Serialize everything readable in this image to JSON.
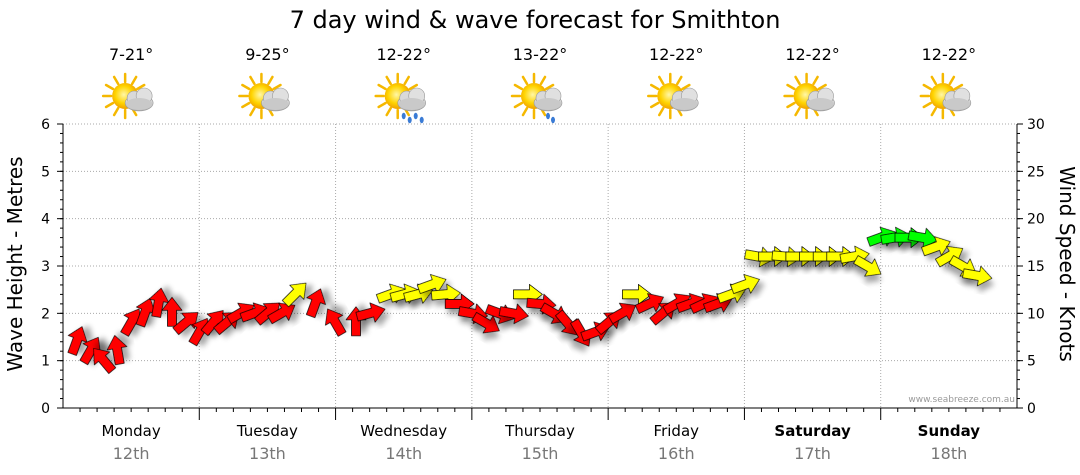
{
  "chart_data": {
    "type": "line",
    "title": "7 day wind & wave forecast for Smithton",
    "ylabel": "Wave Height - Metres",
    "y2label": "Wind Speed - Knots",
    "ylim": [
      0,
      6
    ],
    "y2lim": [
      0,
      30
    ],
    "yticks": [
      "0",
      "1",
      "2",
      "3",
      "4",
      "5",
      "6"
    ],
    "y2ticks": [
      "0",
      "5",
      "10",
      "15",
      "20",
      "25",
      "30"
    ],
    "grid": true,
    "credit": "www.seabreeze.com.au",
    "days": [
      {
        "name": "Monday",
        "date": "12th",
        "temp": "7-21°",
        "weather": "partly-cloudy",
        "bold": false
      },
      {
        "name": "Tuesday",
        "date": "13th",
        "temp": "9-25°",
        "weather": "partly-cloudy",
        "bold": false
      },
      {
        "name": "Wednesday",
        "date": "14th",
        "temp": "12-22°",
        "weather": "showers",
        "bold": false
      },
      {
        "name": "Thursday",
        "date": "15th",
        "temp": "13-22°",
        "weather": "light-shower",
        "bold": false
      },
      {
        "name": "Friday",
        "date": "16th",
        "temp": "12-22°",
        "weather": "partly-cloudy",
        "bold": false
      },
      {
        "name": "Saturday",
        "date": "17th",
        "temp": "12-22°",
        "weather": "partly-cloudy",
        "bold": true
      },
      {
        "name": "Sunday",
        "date": "18th",
        "temp": "12-22°",
        "weather": "partly-cloudy",
        "bold": true
      }
    ],
    "wind_arrows": [
      {
        "t": 0.1,
        "knots": 7,
        "dir": 200,
        "color": "#ff0000"
      },
      {
        "t": 0.2,
        "knots": 6,
        "dir": 210,
        "color": "#ff0000"
      },
      {
        "t": 0.3,
        "knots": 5,
        "dir": 140,
        "color": "#ff0000"
      },
      {
        "t": 0.4,
        "knots": 6,
        "dir": 170,
        "color": "#ff0000"
      },
      {
        "t": 0.5,
        "knots": 9,
        "dir": 210,
        "color": "#ff0000"
      },
      {
        "t": 0.6,
        "knots": 10,
        "dir": 200,
        "color": "#ff0000"
      },
      {
        "t": 0.7,
        "knots": 11,
        "dir": 190,
        "color": "#ff0000"
      },
      {
        "t": 0.8,
        "knots": 10,
        "dir": 180,
        "color": "#ff0000"
      },
      {
        "t": 0.9,
        "knots": 9,
        "dir": 230,
        "color": "#ff0000"
      },
      {
        "t": 1.0,
        "knots": 8,
        "dir": 210,
        "color": "#ff0000"
      },
      {
        "t": 1.1,
        "knots": 9,
        "dir": 220,
        "color": "#ff0000"
      },
      {
        "t": 1.2,
        "knots": 9,
        "dir": 230,
        "color": "#ff0000"
      },
      {
        "t": 1.3,
        "knots": 10,
        "dir": 240,
        "color": "#ff0000"
      },
      {
        "t": 1.4,
        "knots": 10,
        "dir": 250,
        "color": "#ff0000"
      },
      {
        "t": 1.5,
        "knots": 10,
        "dir": 230,
        "color": "#ff0000"
      },
      {
        "t": 1.6,
        "knots": 10,
        "dir": 240,
        "color": "#ff0000"
      },
      {
        "t": 1.7,
        "knots": 12,
        "dir": 225,
        "color": "#ffff00"
      },
      {
        "t": 1.85,
        "knots": 11,
        "dir": 200,
        "color": "#ff0000"
      },
      {
        "t": 2.0,
        "knots": 9,
        "dir": 150,
        "color": "#ff0000"
      },
      {
        "t": 2.15,
        "knots": 9,
        "dir": 180,
        "color": "#ff0000"
      },
      {
        "t": 2.25,
        "knots": 10,
        "dir": 255,
        "color": "#ff0000"
      },
      {
        "t": 2.4,
        "knots": 12,
        "dir": 250,
        "color": "#ffff00"
      },
      {
        "t": 2.5,
        "knots": 12,
        "dir": 255,
        "color": "#ffff00"
      },
      {
        "t": 2.6,
        "knots": 12,
        "dir": 255,
        "color": "#ffff00"
      },
      {
        "t": 2.7,
        "knots": 13,
        "dir": 250,
        "color": "#ffff00"
      },
      {
        "t": 2.8,
        "knots": 12,
        "dir": 265,
        "color": "#ffff00"
      },
      {
        "t": 2.9,
        "knots": 11,
        "dir": 270,
        "color": "#ff0000"
      },
      {
        "t": 3.0,
        "knots": 10,
        "dir": 280,
        "color": "#ff0000"
      },
      {
        "t": 3.1,
        "knots": 9,
        "dir": 300,
        "color": "#ff0000"
      },
      {
        "t": 3.2,
        "knots": 10,
        "dir": 290,
        "color": "#ff0000"
      },
      {
        "t": 3.3,
        "knots": 10,
        "dir": 280,
        "color": "#ff0000"
      },
      {
        "t": 3.4,
        "knots": 12,
        "dir": 270,
        "color": "#ffff00"
      },
      {
        "t": 3.5,
        "knots": 11,
        "dir": 275,
        "color": "#ff0000"
      },
      {
        "t": 3.6,
        "knots": 10,
        "dir": 300,
        "color": "#ff0000"
      },
      {
        "t": 3.7,
        "knots": 9,
        "dir": 320,
        "color": "#ff0000"
      },
      {
        "t": 3.8,
        "knots": 8,
        "dir": 330,
        "color": "#ff0000"
      },
      {
        "t": 3.9,
        "knots": 8,
        "dir": 250,
        "color": "#ff0000"
      },
      {
        "t": 4.0,
        "knots": 9,
        "dir": 230,
        "color": "#ff0000"
      },
      {
        "t": 4.1,
        "knots": 10,
        "dir": 240,
        "color": "#ff0000"
      },
      {
        "t": 4.2,
        "knots": 12,
        "dir": 270,
        "color": "#ffff00"
      },
      {
        "t": 4.3,
        "knots": 11,
        "dir": 245,
        "color": "#ff0000"
      },
      {
        "t": 4.4,
        "knots": 10,
        "dir": 230,
        "color": "#ff0000"
      },
      {
        "t": 4.5,
        "knots": 11,
        "dir": 240,
        "color": "#ff0000"
      },
      {
        "t": 4.6,
        "knots": 11,
        "dir": 250,
        "color": "#ff0000"
      },
      {
        "t": 4.7,
        "knots": 11,
        "dir": 245,
        "color": "#ff0000"
      },
      {
        "t": 4.8,
        "knots": 11,
        "dir": 250,
        "color": "#ff0000"
      },
      {
        "t": 4.9,
        "knots": 12,
        "dir": 250,
        "color": "#ffff00"
      },
      {
        "t": 5.0,
        "knots": 13,
        "dir": 250,
        "color": "#ffff00"
      },
      {
        "t": 5.1,
        "knots": 16,
        "dir": 280,
        "color": "#ffff00"
      },
      {
        "t": 5.2,
        "knots": 16,
        "dir": 270,
        "color": "#ffff00"
      },
      {
        "t": 5.3,
        "knots": 16,
        "dir": 275,
        "color": "#ffff00"
      },
      {
        "t": 5.4,
        "knots": 16,
        "dir": 270,
        "color": "#ffff00"
      },
      {
        "t": 5.5,
        "knots": 16,
        "dir": 270,
        "color": "#ffff00"
      },
      {
        "t": 5.6,
        "knots": 16,
        "dir": 270,
        "color": "#ffff00"
      },
      {
        "t": 5.7,
        "knots": 16,
        "dir": 270,
        "color": "#ffff00"
      },
      {
        "t": 5.8,
        "knots": 16,
        "dir": 260,
        "color": "#ffff00"
      },
      {
        "t": 5.9,
        "knots": 15,
        "dir": 300,
        "color": "#ffff00"
      },
      {
        "t": 6.0,
        "knots": 18,
        "dir": 250,
        "color": "#00ff00"
      },
      {
        "t": 6.1,
        "knots": 18,
        "dir": 260,
        "color": "#00ff00"
      },
      {
        "t": 6.2,
        "knots": 18,
        "dir": 270,
        "color": "#00ff00"
      },
      {
        "t": 6.3,
        "knots": 18,
        "dir": 280,
        "color": "#00ff00"
      },
      {
        "t": 6.4,
        "knots": 17,
        "dir": 250,
        "color": "#ffff00"
      },
      {
        "t": 6.5,
        "knots": 16,
        "dir": 240,
        "color": "#ffff00"
      },
      {
        "t": 6.6,
        "knots": 15,
        "dir": 300,
        "color": "#ffff00"
      },
      {
        "t": 6.7,
        "knots": 14,
        "dir": 280,
        "color": "#ffff00"
      }
    ]
  }
}
